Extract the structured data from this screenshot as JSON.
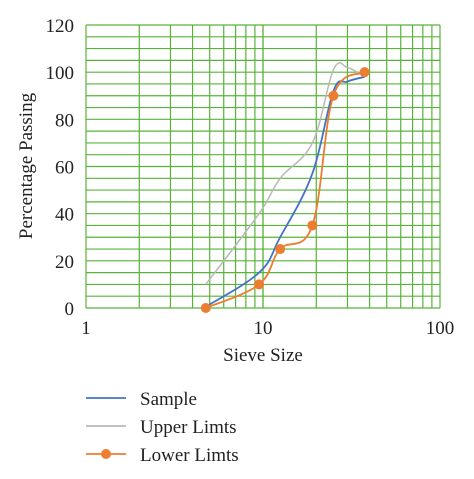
{
  "chart_data": {
    "type": "line",
    "xscale": "log",
    "xlim": [
      1,
      100
    ],
    "ylim": [
      0,
      120
    ],
    "grid": true,
    "legend_position": "bottom",
    "xlabel": "Sieve Size",
    "ylabel": "Percentage Passing",
    "x_ticks": [
      "1",
      "10",
      "100"
    ],
    "y_ticks": [
      "0",
      "20",
      "40",
      "60",
      "80",
      "100",
      "120"
    ],
    "series": [
      {
        "name": "Sample",
        "color": "#4472c4",
        "marker": "none",
        "x": [
          4.75,
          9.5,
          12.5,
          19,
          25,
          30,
          37.5
        ],
        "y": [
          0.5,
          15,
          30,
          57,
          92,
          96,
          98
        ]
      },
      {
        "name": "Upper Limts",
        "color": "#b8b8b8",
        "marker": "none",
        "x": [
          4.75,
          9.5,
          12.5,
          19,
          25,
          30,
          37.5
        ],
        "y": [
          10,
          40,
          55,
          70,
          101,
          102,
          98
        ]
      },
      {
        "name": "Lower Limts",
        "color": "#ed7d31",
        "marker": "circle",
        "x": [
          4.75,
          9.5,
          12.5,
          19,
          25,
          37.5
        ],
        "y": [
          0,
          10,
          25,
          35,
          90,
          100
        ]
      }
    ]
  }
}
